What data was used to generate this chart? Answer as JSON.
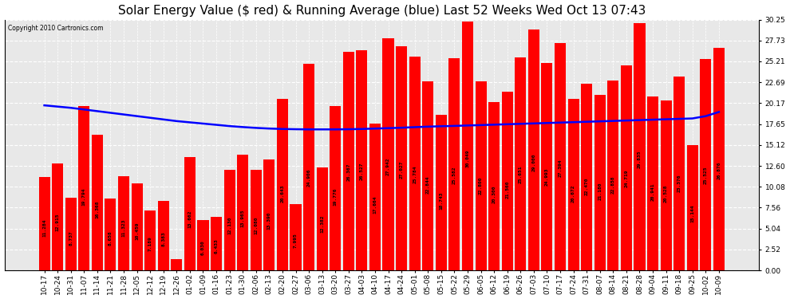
{
  "title": "Solar Energy Value ($ red) & Running Average (blue) Last 52 Weeks Wed Oct 13 07:43",
  "copyright": "Copyright 2010 Cartronics.com",
  "bar_color": "#FF0000",
  "line_color": "#0000FF",
  "background_color": "#E8E8E8",
  "ylim": [
    0,
    30.25
  ],
  "yticks": [
    0.0,
    2.52,
    5.04,
    7.56,
    10.08,
    12.6,
    15.12,
    17.65,
    20.17,
    22.69,
    25.21,
    27.73,
    30.25
  ],
  "categories": [
    "10-17",
    "10-24",
    "10-31",
    "11-07",
    "11-14",
    "11-21",
    "11-28",
    "12-05",
    "12-12",
    "12-19",
    "12-26",
    "01-02",
    "01-09",
    "01-16",
    "01-23",
    "01-30",
    "02-06",
    "02-13",
    "02-20",
    "02-27",
    "03-06",
    "03-13",
    "03-20",
    "03-27",
    "04-03",
    "04-10",
    "04-17",
    "04-24",
    "05-01",
    "05-08",
    "05-15",
    "05-22",
    "05-29",
    "06-05",
    "06-12",
    "06-19",
    "06-26",
    "07-03",
    "07-10",
    "07-17",
    "07-24",
    "07-31",
    "08-07",
    "08-14",
    "08-21",
    "08-28",
    "09-04",
    "09-11",
    "09-18",
    "09-25",
    "10-02",
    "10-09"
  ],
  "values": [
    11.284,
    12.915,
    8.737,
    19.794,
    16.368,
    8.658,
    11.323,
    10.459,
    7.189,
    8.383,
    1.364,
    13.662,
    6.03,
    6.433,
    12.13,
    13.965,
    12.08,
    13.39,
    20.643,
    7.995,
    24.906,
    12.382,
    19.776,
    26.367,
    26.527,
    17.664,
    27.942,
    27.027,
    25.784,
    22.844,
    18.743,
    25.582,
    30.049,
    22.8,
    20.3,
    21.56,
    25.651,
    29.0,
    24.993,
    27.394,
    20.672,
    22.47,
    21.18,
    22.858,
    24.719,
    29.835,
    20.941,
    20.528,
    23.376,
    15.144,
    25.525,
    26.876
  ],
  "running_avg": [
    19.9,
    19.75,
    19.6,
    19.4,
    19.2,
    19.0,
    18.8,
    18.6,
    18.4,
    18.2,
    18.0,
    17.85,
    17.7,
    17.55,
    17.4,
    17.28,
    17.18,
    17.1,
    17.05,
    17.02,
    17.0,
    17.0,
    17.0,
    17.02,
    17.05,
    17.1,
    17.15,
    17.2,
    17.27,
    17.33,
    17.38,
    17.42,
    17.47,
    17.52,
    17.57,
    17.62,
    17.67,
    17.72,
    17.77,
    17.82,
    17.87,
    17.92,
    17.97,
    18.02,
    18.07,
    18.12,
    18.17,
    18.22,
    18.27,
    18.32,
    18.6,
    19.1
  ],
  "title_fontsize": 11,
  "tick_fontsize": 6.5,
  "value_fontsize": 4.5
}
